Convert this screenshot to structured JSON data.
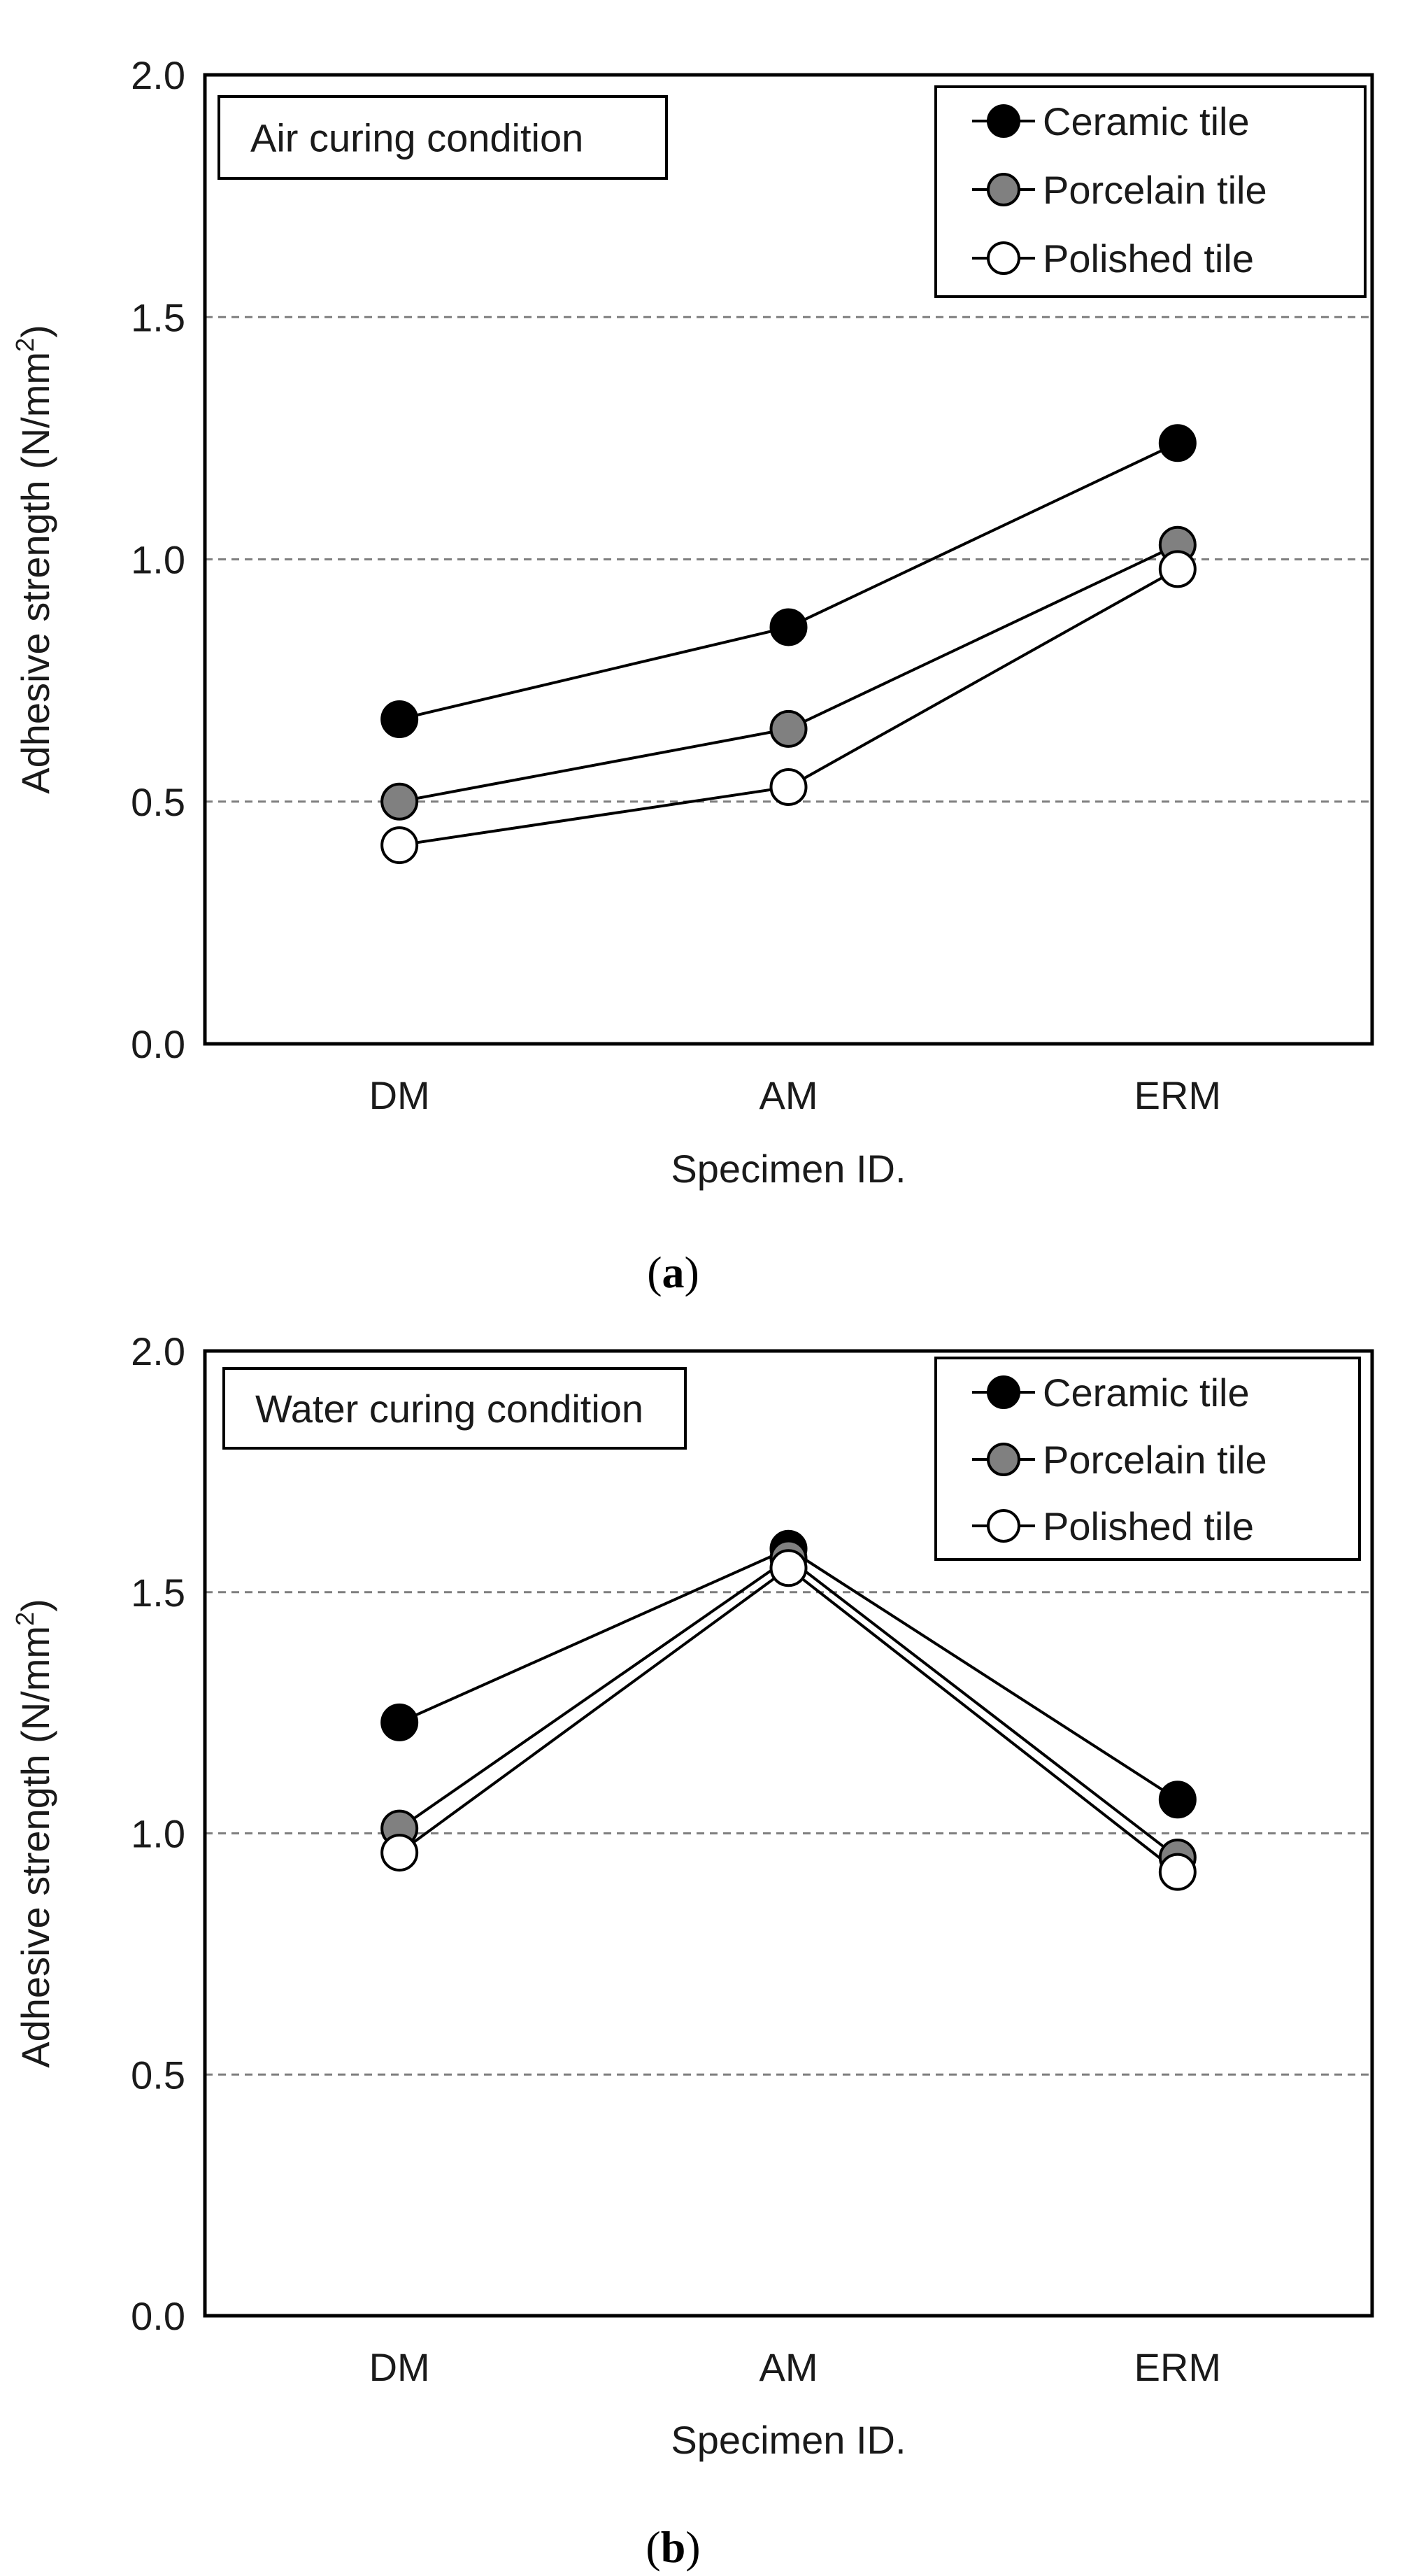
{
  "chart_data": [
    {
      "type": "line",
      "panel_label": "a",
      "title": "Air curing condition",
      "xlabel": "Specimen ID.",
      "ylabel_main": "Adhesive strength (N/mm",
      "ylabel_sup": "2",
      "ylabel_end": ")",
      "categories": [
        "DM",
        "AM",
        "ERM"
      ],
      "ylim": [
        0,
        2
      ],
      "yticks": [
        "0.0",
        "0.5",
        "1.0",
        "1.5",
        "2.0"
      ],
      "ytick_values": [
        0,
        0.5,
        1.0,
        1.5,
        2.0
      ],
      "grid_lines": [
        0.5,
        1.0,
        1.5
      ],
      "legend_position": "top-right",
      "series": [
        {
          "name": "Ceramic tile",
          "marker_fill": "#000000",
          "values": [
            0.67,
            0.86,
            1.24
          ]
        },
        {
          "name": "Porcelain tile",
          "marker_fill": "#808080",
          "values": [
            0.5,
            0.65,
            1.03
          ]
        },
        {
          "name": "Polished tile",
          "marker_fill": "#ffffff",
          "values": [
            0.41,
            0.53,
            0.98
          ]
        }
      ]
    },
    {
      "type": "line",
      "panel_label": "b",
      "title": "Water curing condition",
      "xlabel": "Specimen ID.",
      "ylabel_main": "Adhesive strength (N/mm",
      "ylabel_sup": "2",
      "ylabel_end": ")",
      "categories": [
        "DM",
        "AM",
        "ERM"
      ],
      "ylim": [
        0,
        2
      ],
      "yticks": [
        "0.0",
        "0.5",
        "1.0",
        "1.5",
        "2.0"
      ],
      "ytick_values": [
        0,
        0.5,
        1.0,
        1.5,
        2.0
      ],
      "grid_lines": [
        0.5,
        1.0,
        1.5
      ],
      "legend_position": "top-right",
      "series": [
        {
          "name": "Ceramic tile",
          "marker_fill": "#000000",
          "values": [
            1.23,
            1.59,
            1.07
          ]
        },
        {
          "name": "Porcelain tile",
          "marker_fill": "#808080",
          "values": [
            1.01,
            1.57,
            0.95
          ]
        },
        {
          "name": "Polished tile",
          "marker_fill": "#ffffff",
          "values": [
            0.96,
            1.55,
            0.92
          ]
        }
      ]
    }
  ],
  "colors": {
    "axis": "#000000",
    "grid": "#7f7f7f",
    "line": "#000000",
    "marker_stroke": "#000000"
  }
}
